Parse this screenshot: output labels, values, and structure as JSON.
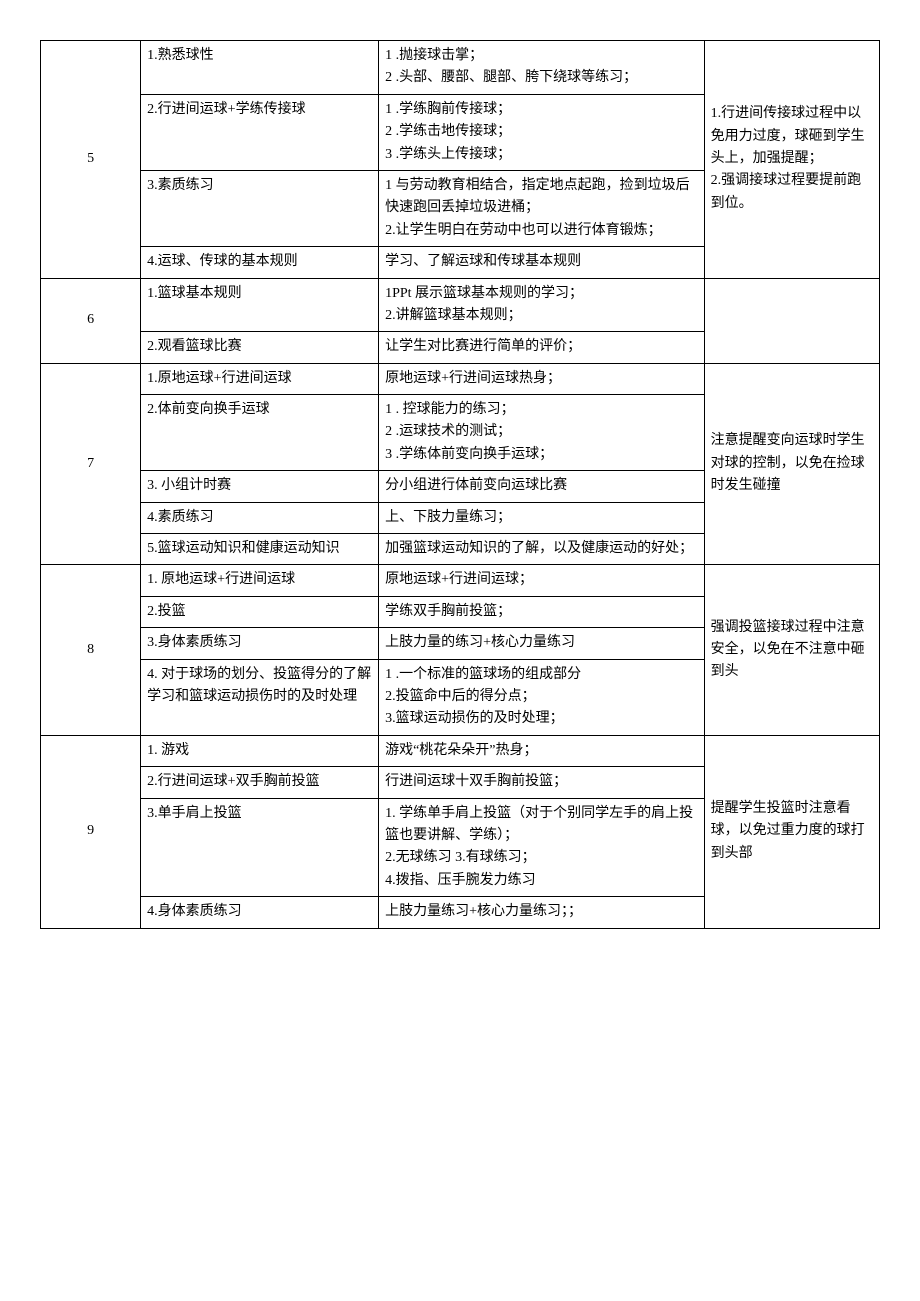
{
  "rows": [
    {
      "num": "5",
      "note": "1.行进间传接球过程中以免用力过度，球砸到学生头上，加强提醒；\n2.强调接球过程要提前跑到位。",
      "items": [
        {
          "title": "1.熟悉球性",
          "desc": "1         .抛接球击掌；\n2         .头部、腰部、腿部、胯下绕球等练习；"
        },
        {
          "title": "2.行进间运球+学练传接球",
          "desc": "1         .学练胸前传接球；\n2         .学练击地传接球；\n3         .学练头上传接球；"
        },
        {
          "title": "3.素质练习",
          "desc": "1 与劳动教育相结合，指定地点起跑，捡到垃圾后快速跑回丢掉垃圾进桶；\n2.让学生明白在劳动中也可以进行体育锻炼；"
        },
        {
          "title": "4.运球、传球的基本规则",
          "desc": "学习、了解运球和传球基本规则"
        }
      ]
    },
    {
      "num": "6",
      "note": "",
      "items": [
        {
          "title": "1.篮球基本规则",
          "desc": "1PPt 展示篮球基本规则的学习；\n2.讲解篮球基本规则；"
        },
        {
          "title": "2.观看篮球比赛",
          "desc": "让学生对比赛进行简单的评价；"
        }
      ]
    },
    {
      "num": "7",
      "note": "注意提醒变向运球时学生对球的控制，以免在捡球时发生碰撞",
      "items": [
        {
          "title": "1.原地运球+行进间运球",
          "desc": "原地运球+行进间运球热身；"
        },
        {
          "title": "2.体前变向换手运球",
          "desc": "1          . 控球能力的练习；\n2         .运球技术的测试；\n3         .学练体前变向换手运球；"
        },
        {
          "title": "3. 小组计时赛",
          "desc": "分小组进行体前变向运球比赛"
        },
        {
          "title": "4.素质练习",
          "desc": "上、下肢力量练习；"
        },
        {
          "title": "5.篮球运动知识和健康运动知识",
          "desc": "加强篮球运动知识的了解，以及健康运动的好处；"
        }
      ]
    },
    {
      "num": "8",
      "note": "强调投篮接球过程中注意安全，以免在不注意中砸到头",
      "items": [
        {
          "title": "1. 原地运球+行进间运球",
          "desc": "原地运球+行进间运球；"
        },
        {
          "title": "2.投篮",
          "desc": "学练双手胸前投篮；"
        },
        {
          "title": "3.身体素质练习",
          "desc": "上肢力量的练习+核心力量练习"
        },
        {
          "title": "4. 对于球场的划分、投篮得分的了解学习和篮球运动损伤时的及时处理",
          "desc": "1         .一个标准的篮球场的组成部分\n2.投篮命中后的得分点；\n3.篮球运动损伤的及时处理；"
        }
      ]
    },
    {
      "num": "9",
      "note": "提醒学生投篮时注意看球，以免过重力度的球打到头部",
      "items": [
        {
          "title": "1. 游戏",
          "desc": "游戏“桃花朵朵开”热身；"
        },
        {
          "title": "2.行进间运球+双手胸前投篮",
          "desc": "行进间运球十双手胸前投篮；"
        },
        {
          "title": "3.单手肩上投篮",
          "desc": "1. 学练单手肩上投篮（对于个别同学左手的肩上投篮也要讲解、学练）；\n2.无球练习 3.有球练习；\n4.拨指、压手腕发力练习"
        },
        {
          "title": "4.身体素质练习",
          "desc": "上肢力量练习+核心力量练习；；"
        }
      ]
    }
  ]
}
